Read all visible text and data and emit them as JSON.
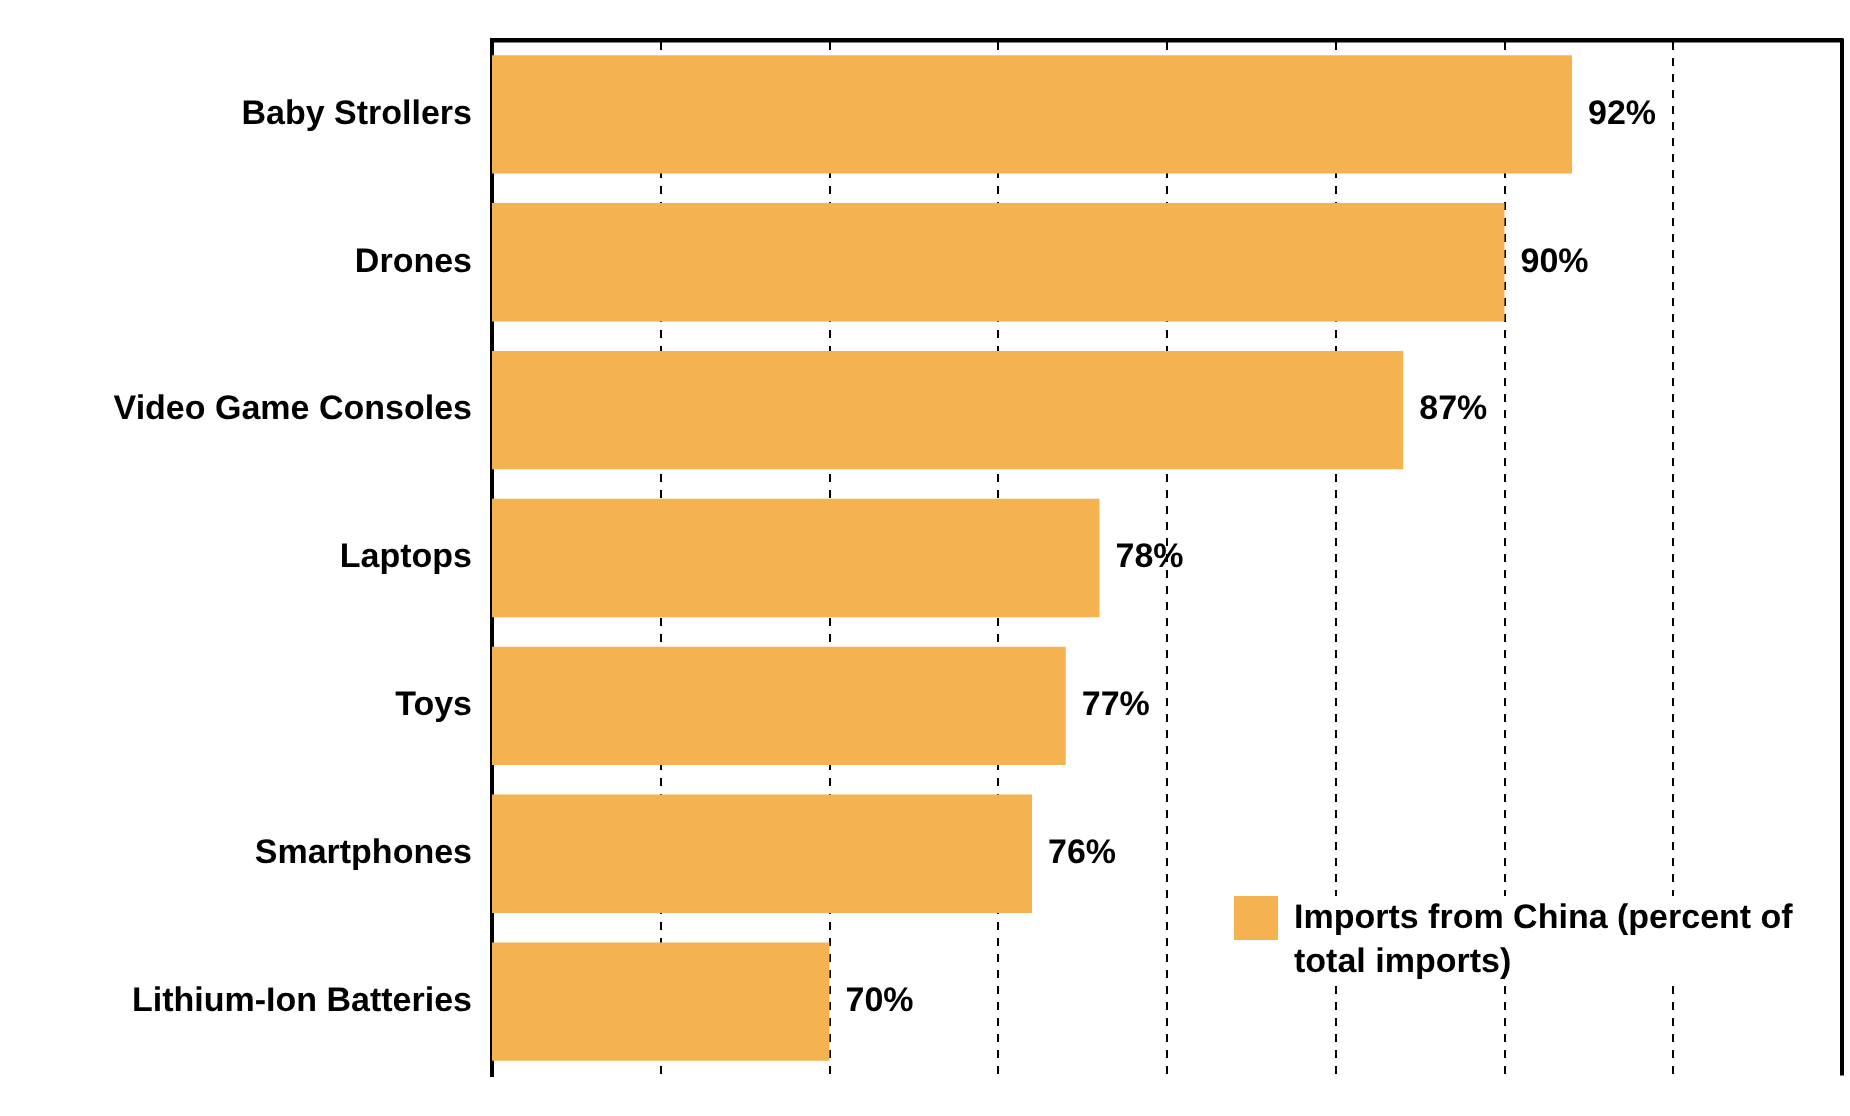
{
  "chart_data": {
    "type": "bar",
    "orientation": "horizontal",
    "categories": [
      "Baby Strollers",
      "Drones",
      "Video Game Consoles",
      "Laptops",
      "Toys",
      "Smartphones",
      "Lithium-Ion Batteries"
    ],
    "series": [
      {
        "name": "Imports from China (percent of total imports)",
        "color": "#f4b350",
        "values": [
          92,
          90,
          87,
          78,
          77,
          76,
          70
        ],
        "value_labels": [
          "92%",
          "90%",
          "87%",
          "78%",
          "77%",
          "76%",
          "70%"
        ]
      }
    ],
    "xlim": [
      60,
      100
    ],
    "xticks": [
      {
        "value": 60,
        "label": null
      },
      {
        "value": 65,
        "label": null
      },
      {
        "value": 70,
        "label": null
      },
      {
        "value": 75,
        "label": null
      },
      {
        "value": 80,
        "label": null
      },
      {
        "value": 85,
        "label": null
      },
      {
        "value": 90,
        "label": null
      },
      {
        "value": 95,
        "label": null
      },
      {
        "value": 100,
        "label": null
      }
    ],
    "tick_labels": "y",
    "grid": "x",
    "legend": "bottom right"
  }
}
